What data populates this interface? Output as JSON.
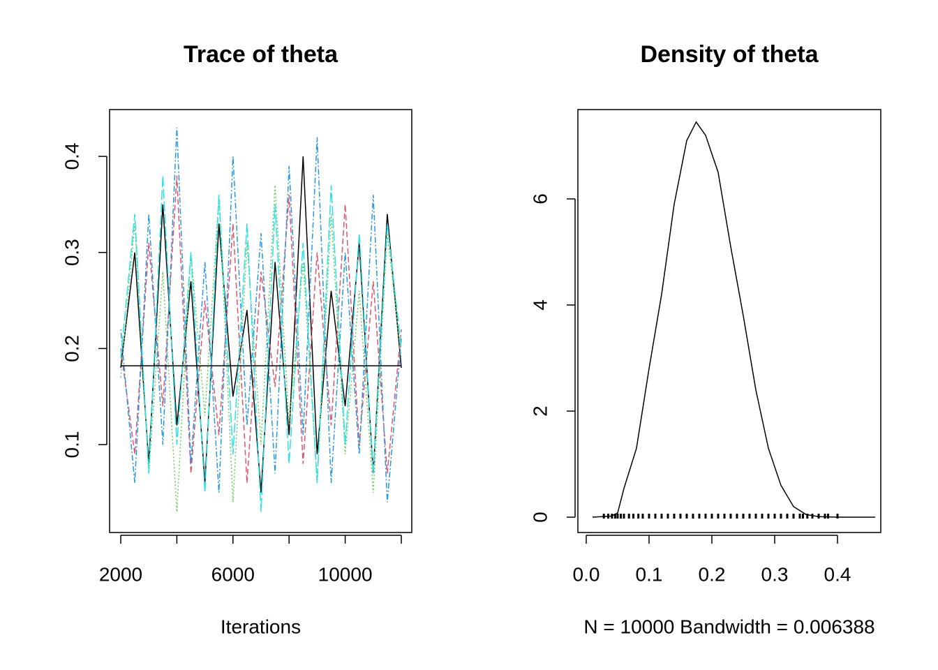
{
  "chart_data": [
    {
      "type": "line",
      "title": "Trace of theta",
      "xlabel": "Iterations",
      "x": [
        2000,
        2500,
        3000,
        3500,
        4000,
        4500,
        5000,
        5500,
        6000,
        6500,
        7000,
        7500,
        8000,
        8500,
        9000,
        9500,
        10000,
        10500,
        11000,
        11500,
        12000
      ],
      "series": [
        {
          "color": "#000000",
          "linestyle": "solid",
          "values": [
            0.18,
            0.3,
            0.08,
            0.35,
            0.12,
            0.27,
            0.06,
            0.33,
            0.15,
            0.24,
            0.05,
            0.29,
            0.11,
            0.4,
            0.09,
            0.26,
            0.14,
            0.31,
            0.07,
            0.34,
            0.18
          ]
        },
        {
          "color": "#DF536B",
          "linestyle": "dashed",
          "values": [
            0.2,
            0.09,
            0.31,
            0.14,
            0.38,
            0.07,
            0.25,
            0.11,
            0.33,
            0.06,
            0.28,
            0.16,
            0.36,
            0.08,
            0.3,
            0.12,
            0.35,
            0.1,
            0.27,
            0.07,
            0.22
          ]
        },
        {
          "color": "#61D04F",
          "linestyle": "dotted",
          "values": [
            0.17,
            0.33,
            0.07,
            0.28,
            0.03,
            0.3,
            0.13,
            0.36,
            0.04,
            0.31,
            0.1,
            0.37,
            0.12,
            0.29,
            0.06,
            0.34,
            0.09,
            0.26,
            0.05,
            0.32,
            0.19
          ]
        },
        {
          "color": "#2297E6",
          "linestyle": "dotdash",
          "values": [
            0.22,
            0.06,
            0.34,
            0.1,
            0.43,
            0.08,
            0.29,
            0.05,
            0.4,
            0.12,
            0.32,
            0.07,
            0.39,
            0.11,
            0.42,
            0.06,
            0.3,
            0.09,
            0.36,
            0.04,
            0.21
          ]
        },
        {
          "color": "#28E2E5",
          "linestyle": "longdash",
          "values": [
            0.19,
            0.34,
            0.07,
            0.38,
            0.1,
            0.3,
            0.05,
            0.36,
            0.09,
            0.33,
            0.03,
            0.35,
            0.08,
            0.31,
            0.06,
            0.37,
            0.1,
            0.32,
            0.07,
            0.33,
            0.2
          ]
        }
      ],
      "mean_line": 0.182,
      "xlim": [
        1602,
        12373
      ],
      "xticks": [
        2000,
        6000,
        10000
      ],
      "xminor_ticks": [
        4000,
        8000,
        12000
      ],
      "ylim": [
        0.0085,
        0.4487
      ],
      "yticks": [
        0.1,
        0.2,
        0.3,
        0.4
      ]
    },
    {
      "type": "density",
      "title": "Density of theta",
      "xlabel": "N = 10000   Bandwidth = 0.006388",
      "color": "#000000",
      "x": [
        0.01,
        0.04,
        0.05,
        0.06,
        0.08,
        0.1,
        0.12,
        0.14,
        0.16,
        0.175,
        0.19,
        0.21,
        0.23,
        0.25,
        0.27,
        0.29,
        0.31,
        0.33,
        0.35,
        0.37,
        0.4,
        0.46
      ],
      "values": [
        0,
        0.02,
        0.08,
        0.54,
        1.3,
        2.8,
        4.2,
        5.9,
        7.1,
        7.45,
        7.2,
        6.5,
        5.1,
        3.8,
        2.4,
        1.3,
        0.6,
        0.2,
        0.05,
        0.01,
        0,
        0
      ],
      "rug": [
        0.028,
        0.035,
        0.041,
        0.046,
        0.05,
        0.055,
        0.06,
        0.068,
        0.075,
        0.083,
        0.09,
        0.1,
        0.11,
        0.12,
        0.13,
        0.14,
        0.15,
        0.16,
        0.17,
        0.18,
        0.19,
        0.2,
        0.21,
        0.22,
        0.23,
        0.24,
        0.25,
        0.26,
        0.27,
        0.28,
        0.29,
        0.3,
        0.31,
        0.32,
        0.33,
        0.34,
        0.345,
        0.352,
        0.36,
        0.37,
        0.38,
        0.385,
        0.4
      ],
      "xlim": [
        -0.0133,
        0.4689
      ],
      "xticks": [
        {
          "value": 0,
          "label": "0.0"
        },
        0.1,
        0.2,
        0.3,
        0.4
      ],
      "ylim": [
        -0.289,
        7.684
      ],
      "yticks": [
        0,
        2,
        4,
        6
      ]
    }
  ]
}
